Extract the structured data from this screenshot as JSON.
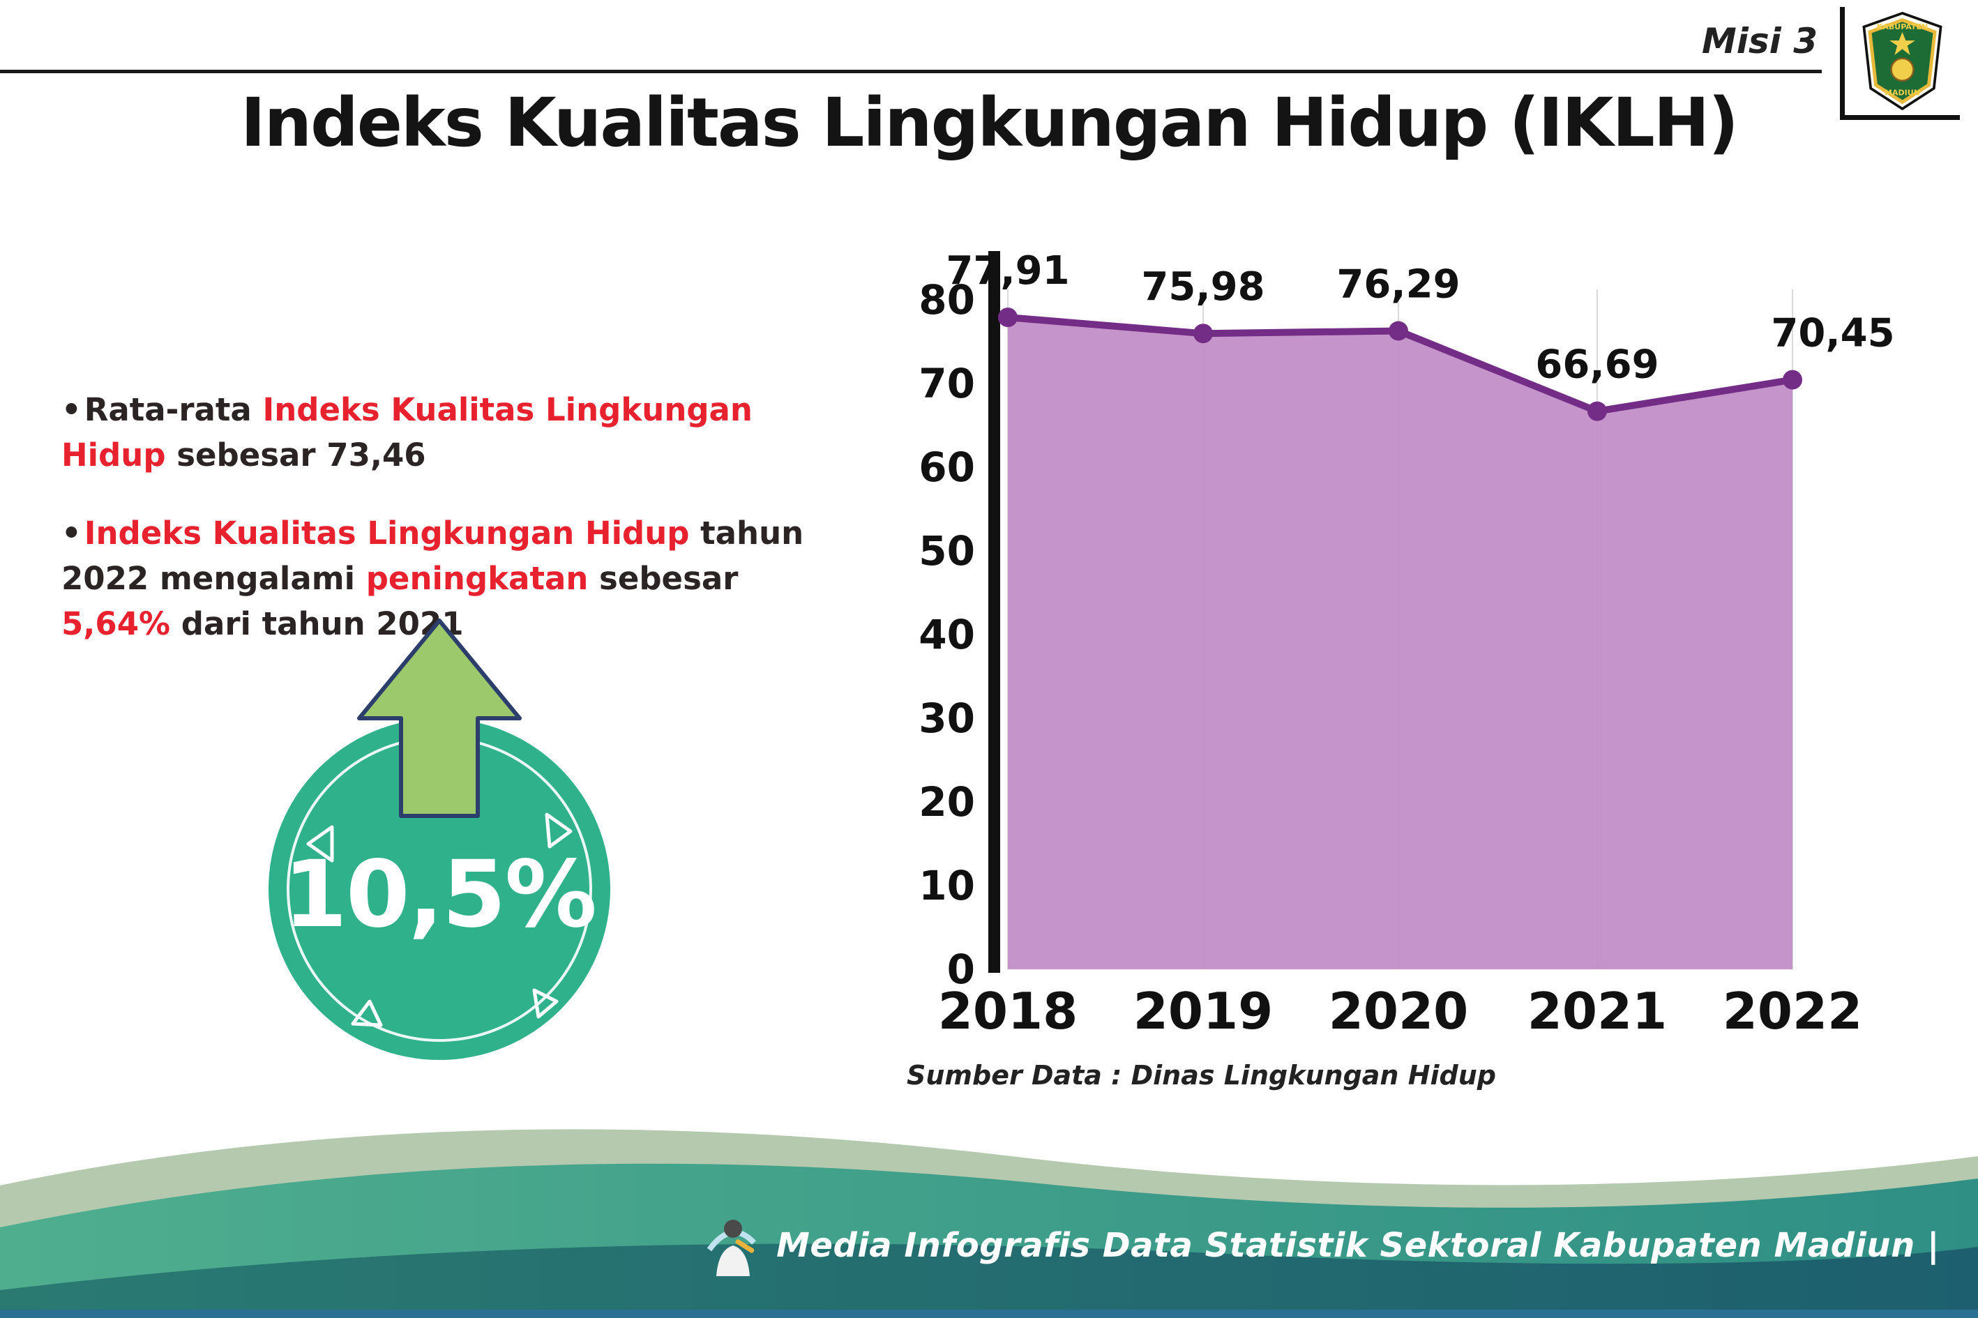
{
  "header": {
    "misi": "Misi 3",
    "title": "Indeks Kualitas Lingkungan Hidup (IKLH)"
  },
  "logo": {
    "line1": "KABUPATEN",
    "line2": "MADIUN"
  },
  "bullets": [
    {
      "segments": [
        {
          "t": "Rata-rata ",
          "c": "dark"
        },
        {
          "t": "Indeks Kualitas Lingkungan Hidup",
          "c": "red"
        },
        {
          "t": " sebesar 73,46",
          "c": "dark"
        }
      ]
    },
    {
      "segments": [
        {
          "t": "Indeks Kualitas Lingkungan Hidup",
          "c": "red"
        },
        {
          "t": " tahun 2022 mengalami ",
          "c": "dark"
        },
        {
          "t": "peningkatan",
          "c": "red"
        },
        {
          "t": " sebesar ",
          "c": "dark"
        },
        {
          "t": "5,64%",
          "c": "red"
        },
        {
          "t": " dari tahun 2021",
          "c": "dark"
        }
      ]
    }
  ],
  "badge": {
    "value": "10,5%"
  },
  "chart_data": {
    "type": "area",
    "categories": [
      "2018",
      "2019",
      "2020",
      "2021",
      "2022"
    ],
    "values": [
      77.91,
      75.98,
      76.29,
      66.69,
      70.45
    ],
    "labels": [
      "77,91",
      "75,98",
      "76,29",
      "66,69",
      "70,45"
    ],
    "title": "",
    "xlabel": "",
    "ylabel": "",
    "ylim": [
      0,
      80
    ],
    "ytick_step": 10,
    "grid": "vertical-light",
    "legend": "none",
    "fill_color": "#c18cc6",
    "line_color": "#742d86",
    "source": "Sumber Data : Dinas Lingkungan Hidup"
  },
  "footer": {
    "text": "Media Infografis Data Statistik Sektoral Kabupaten Madiun |"
  },
  "colors": {
    "accent_red": "#e8212e",
    "badge_teal": "#2fb18c",
    "arrow_green": "#9cc96b",
    "arrow_outline": "#2c3e6b",
    "footer_sage": "#b5c9ae",
    "footer_teal_1": "#4fae8e",
    "footer_teal_2": "#2f8f85",
    "footer_deep_1": "#2a7a72",
    "footer_deep_2": "#1d5f6e",
    "footer_strip": "#2b6f93"
  }
}
